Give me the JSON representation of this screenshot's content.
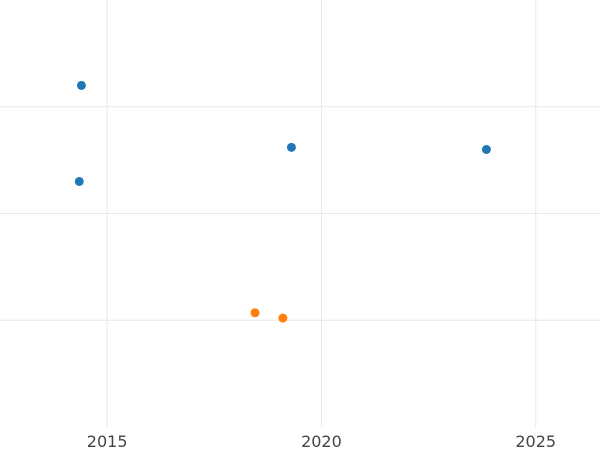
{
  "chart_data": {
    "type": "scatter",
    "title": "",
    "xlabel": "",
    "ylabel": "",
    "xlim": [
      2012.5,
      2026.5
    ],
    "ylim": [
      0,
      4
    ],
    "x_ticks": [
      2015,
      2020,
      2025
    ],
    "x_tick_labels": [
      "2015",
      "2020",
      "2025"
    ],
    "y_gridlines": [
      1,
      2,
      3
    ],
    "y_tick_labels_shown": false,
    "grid": true,
    "legend": "none",
    "series": [
      {
        "color": "#1f77b4",
        "points": [
          {
            "x": 2014.4,
            "y": 3.2
          },
          {
            "x": 2014.35,
            "y": 2.3
          },
          {
            "x": 2019.3,
            "y": 2.62
          },
          {
            "x": 2023.85,
            "y": 2.6
          }
        ]
      },
      {
        "color": "#ff7f0e",
        "points": [
          {
            "x": 2018.45,
            "y": 1.07
          },
          {
            "x": 2019.1,
            "y": 1.02
          }
        ]
      }
    ]
  }
}
